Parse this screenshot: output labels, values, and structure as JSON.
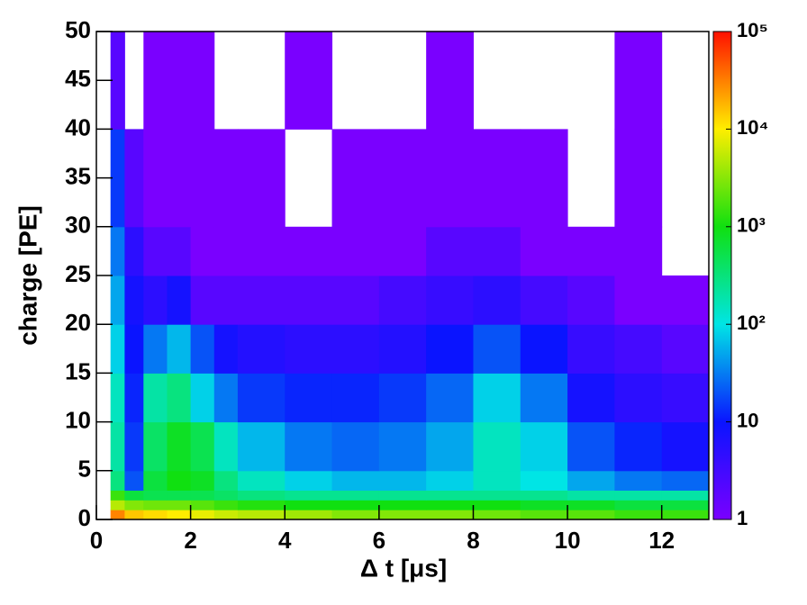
{
  "chart_data": {
    "type": "heatmap",
    "x_label": "Δ t [μs]",
    "y_label": "charge [PE]",
    "xlim": [
      0,
      13
    ],
    "ylim": [
      0,
      50
    ],
    "xticks": [
      0,
      2,
      4,
      6,
      8,
      10,
      12
    ],
    "yticks": [
      0,
      5,
      10,
      15,
      20,
      25,
      30,
      35,
      40,
      45,
      50
    ],
    "zlim": [
      1,
      100000
    ],
    "log_z": true,
    "zticks": [
      1,
      10,
      {
        "value": 100,
        "label": "10²"
      },
      {
        "value": 1000,
        "label": "10³"
      },
      {
        "value": 10000,
        "label": "10⁴"
      },
      {
        "value": 100000,
        "label": "10⁵"
      }
    ],
    "colormap": [
      "#7a00ff",
      "#0a14ff",
      "#00e5e5",
      "#10e010",
      "#ffee00",
      "#ff1000"
    ],
    "xbins": [
      0.3,
      0.6,
      1.0,
      1.5,
      2.0,
      2.5,
      3,
      4,
      5,
      6,
      7,
      8,
      9,
      10,
      11,
      12,
      13
    ],
    "ybins": [
      0,
      1,
      2,
      3,
      5,
      10,
      15,
      20,
      25,
      30,
      40,
      50
    ],
    "values": [
      [
        30000,
        15000,
        12000,
        10000,
        8000,
        6000,
        5000,
        4000,
        3000,
        3000,
        3000,
        2500,
        2000,
        2000,
        1500,
        1500
      ],
      [
        5000,
        3000,
        2500,
        2500,
        2000,
        1500,
        1200,
        1000,
        1000,
        1000,
        1000,
        1000,
        800,
        800,
        600,
        600
      ],
      [
        1500,
        600,
        500,
        500,
        500,
        400,
        300,
        250,
        250,
        250,
        250,
        250,
        250,
        200,
        200,
        200
      ],
      [
        300,
        20,
        600,
        1000,
        800,
        300,
        150,
        80,
        60,
        60,
        80,
        150,
        100,
        50,
        30,
        25
      ],
      [
        200,
        15,
        400,
        800,
        500,
        150,
        60,
        30,
        25,
        30,
        50,
        150,
        80,
        20,
        12,
        8
      ],
      [
        150,
        12,
        200,
        300,
        80,
        30,
        15,
        12,
        12,
        15,
        25,
        80,
        30,
        8,
        5,
        4
      ],
      [
        80,
        10,
        30,
        60,
        20,
        8,
        6,
        5,
        5,
        6,
        10,
        20,
        10,
        4,
        3,
        2
      ],
      [
        50,
        8,
        5,
        8,
        2,
        2,
        2,
        2,
        2,
        3,
        4,
        5,
        3,
        2,
        1,
        1
      ],
      [
        30,
        5,
        2,
        2,
        1,
        1,
        1,
        1,
        1,
        1,
        2,
        2,
        1,
        1,
        1,
        0
      ],
      [
        15,
        2,
        1,
        1,
        1,
        1,
        1,
        0,
        1,
        1,
        1,
        1,
        1,
        0,
        1,
        0
      ],
      [
        2,
        0,
        1,
        1,
        1,
        0,
        0,
        1,
        0,
        0,
        1,
        0,
        0,
        0,
        1,
        0
      ]
    ]
  }
}
